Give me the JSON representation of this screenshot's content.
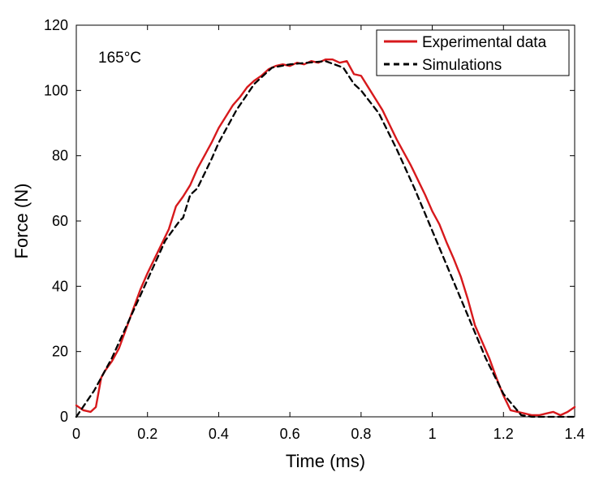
{
  "chart_data": {
    "type": "line",
    "title": "",
    "xlabel": "Time (ms)",
    "ylabel": "Force (N)",
    "xlim": [
      0,
      1.4
    ],
    "ylim": [
      0,
      120
    ],
    "xticks": [
      0,
      0.2,
      0.4,
      0.6,
      0.8,
      1,
      1.2,
      1.4
    ],
    "yticks": [
      0,
      20,
      40,
      60,
      80,
      100,
      120
    ],
    "xtick_labels": [
      "0",
      "0.2",
      "0.4",
      "0.6",
      "0.8",
      "1",
      "1.2",
      "1.4"
    ],
    "ytick_labels": [
      "0",
      "20",
      "40",
      "60",
      "80",
      "100",
      "120"
    ],
    "grid": false,
    "annotation": "165°C",
    "legend": {
      "position": "top-right",
      "entries": [
        "Experimental data",
        "Simulations"
      ]
    },
    "series": [
      {
        "name": "Experimental data",
        "color": "#d7191c",
        "style": "solid",
        "x": [
          0.0,
          0.02,
          0.04,
          0.055,
          0.065,
          0.07,
          0.08,
          0.1,
          0.12,
          0.14,
          0.16,
          0.18,
          0.2,
          0.22,
          0.24,
          0.26,
          0.28,
          0.3,
          0.32,
          0.34,
          0.36,
          0.38,
          0.4,
          0.42,
          0.44,
          0.46,
          0.48,
          0.5,
          0.52,
          0.54,
          0.56,
          0.58,
          0.6,
          0.62,
          0.64,
          0.66,
          0.68,
          0.7,
          0.72,
          0.74,
          0.76,
          0.78,
          0.8,
          0.82,
          0.84,
          0.86,
          0.88,
          0.9,
          0.92,
          0.94,
          0.96,
          0.98,
          1.0,
          1.02,
          1.04,
          1.06,
          1.08,
          1.1,
          1.12,
          1.14,
          1.16,
          1.18,
          1.2,
          1.22,
          1.24,
          1.26,
          1.28,
          1.3,
          1.32,
          1.34,
          1.36,
          1.38,
          1.4
        ],
        "y": [
          3.5,
          2.0,
          1.5,
          3.0,
          9.0,
          12.0,
          14.0,
          17.0,
          21.0,
          27.0,
          33.0,
          39.0,
          44.0,
          48.5,
          53.0,
          57.5,
          64.5,
          67.5,
          71.0,
          76.0,
          80.0,
          84.0,
          88.5,
          92.0,
          95.5,
          98.0,
          101.0,
          103.0,
          104.5,
          106.5,
          107.5,
          108.0,
          107.5,
          108.5,
          108.0,
          109.0,
          108.5,
          109.5,
          109.5,
          108.5,
          109.0,
          105.0,
          104.5,
          101.0,
          97.5,
          94.0,
          89.5,
          85.0,
          81.0,
          77.0,
          72.5,
          68.0,
          63.0,
          59.0,
          53.5,
          48.5,
          43.0,
          36.0,
          28.0,
          23.0,
          18.0,
          12.0,
          6.5,
          2.0,
          1.5,
          1.0,
          0.5,
          0.5,
          1.0,
          1.5,
          0.5,
          1.5,
          3.0
        ]
      },
      {
        "name": "Simulations",
        "color": "#000000",
        "style": "dashed",
        "x": [
          0.0,
          0.05,
          0.1,
          0.15,
          0.2,
          0.25,
          0.29,
          0.3,
          0.32,
          0.34,
          0.38,
          0.4,
          0.45,
          0.5,
          0.55,
          0.6,
          0.65,
          0.7,
          0.75,
          0.78,
          0.8,
          0.85,
          0.9,
          0.95,
          1.0,
          1.05,
          1.1,
          1.15,
          1.2,
          1.25,
          1.28,
          1.3,
          1.35,
          1.4
        ],
        "y": [
          0.0,
          8.0,
          18.0,
          30.0,
          42.0,
          54.0,
          60.0,
          61.0,
          68.0,
          70.0,
          79.0,
          84.0,
          94.0,
          102.0,
          107.0,
          108.0,
          108.5,
          109.0,
          107.0,
          102.0,
          100.0,
          93.0,
          82.0,
          70.0,
          57.0,
          44.0,
          31.0,
          18.0,
          7.0,
          0.5,
          0.0,
          0.0,
          0.0,
          0.0
        ]
      }
    ]
  }
}
